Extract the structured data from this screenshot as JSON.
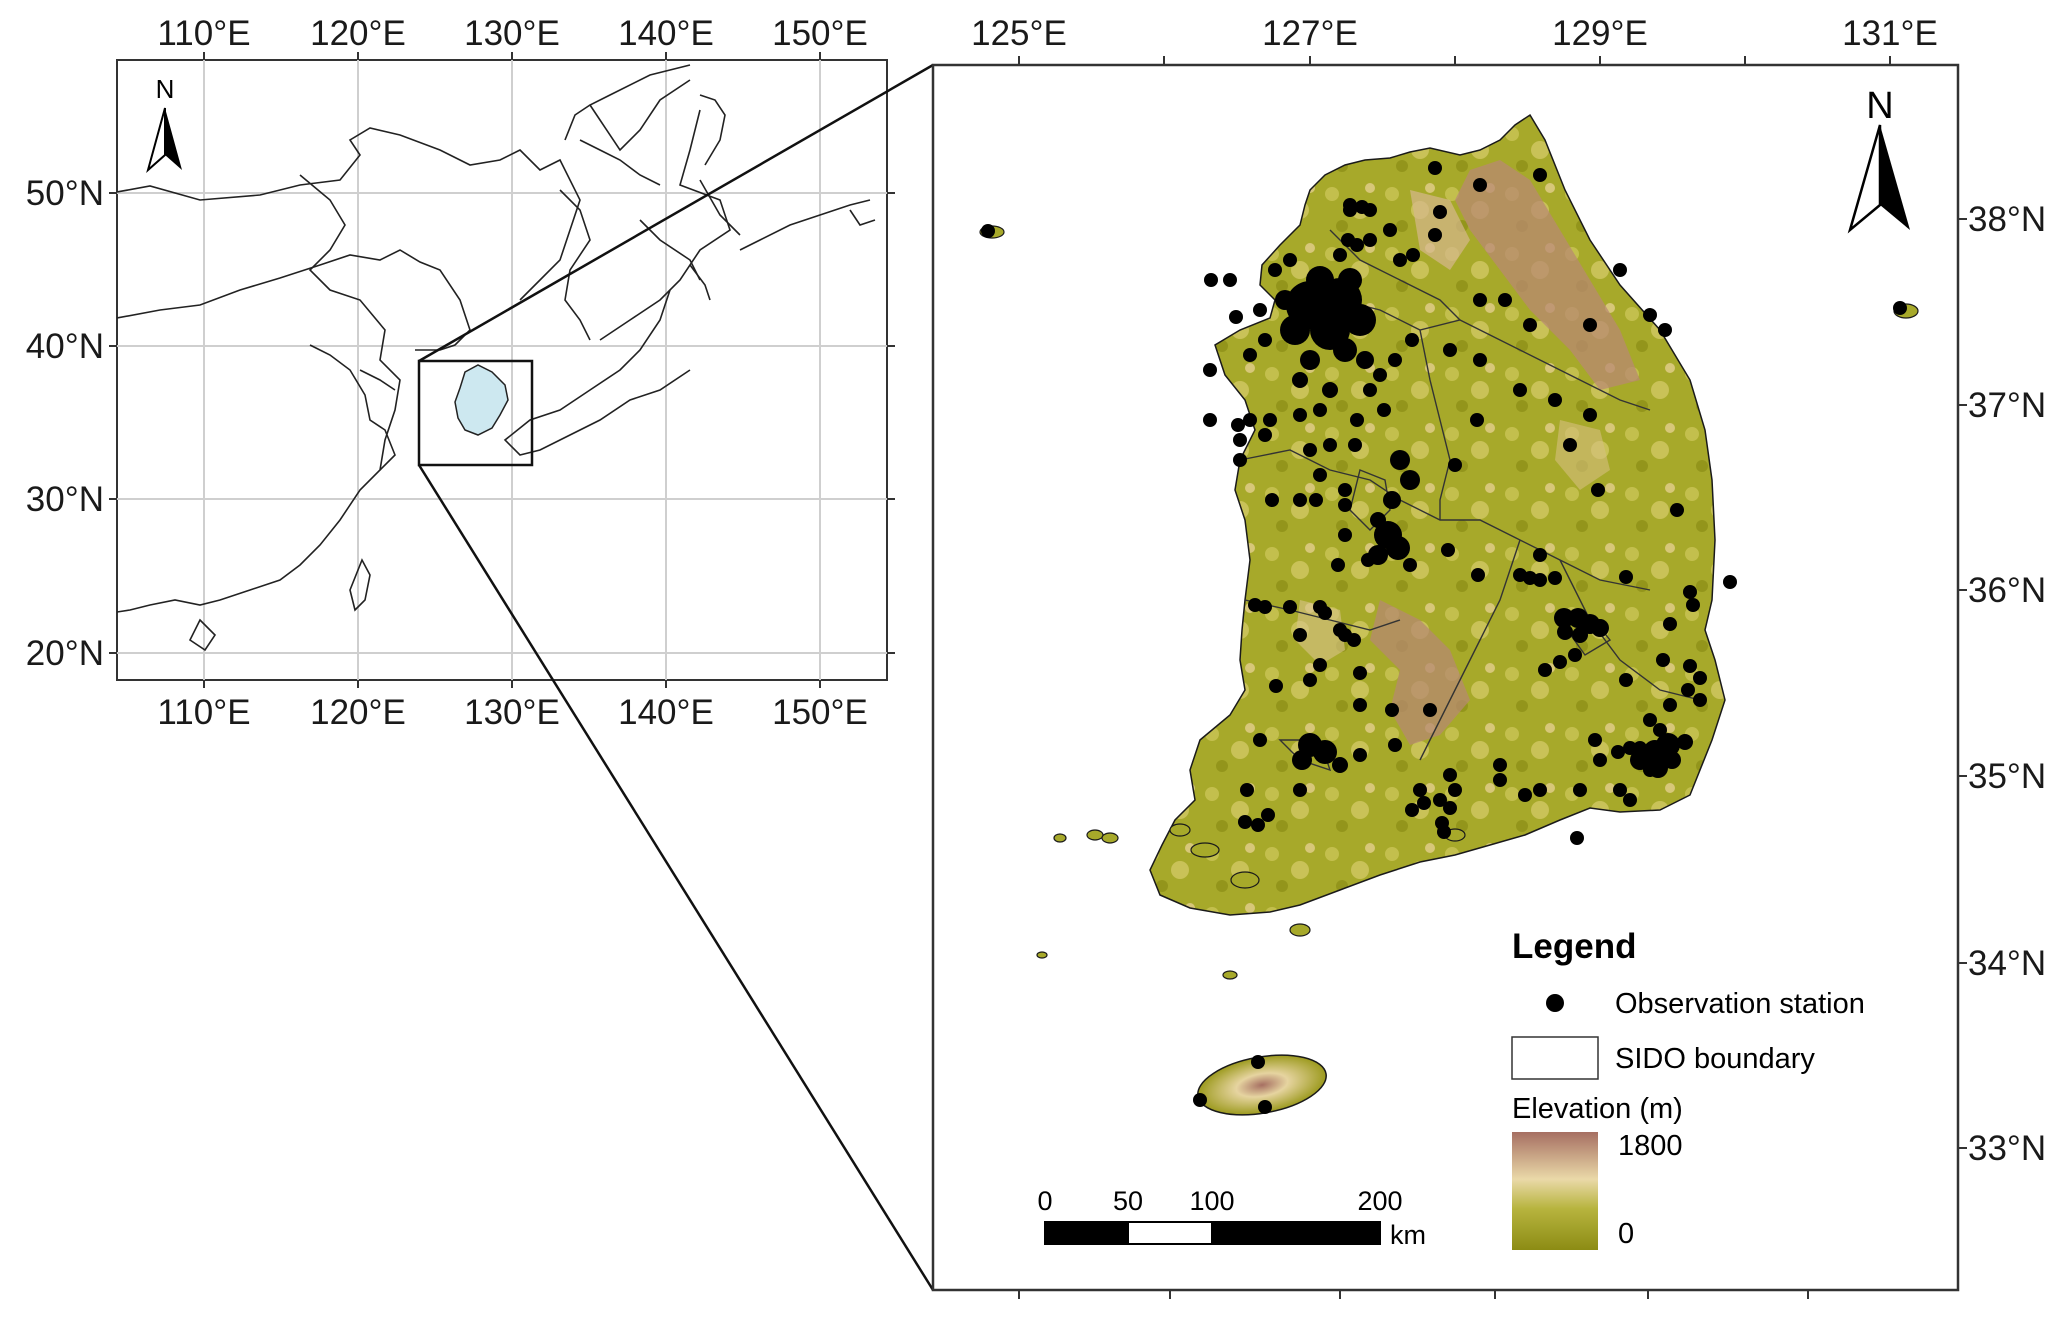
{
  "overview_map": {
    "x_ticks": [
      "110°E",
      "120°E",
      "130°E",
      "140°E",
      "150°E"
    ],
    "y_ticks": [
      "50°N",
      "40°N",
      "30°N",
      "20°N"
    ],
    "north_label": "N"
  },
  "detail_map": {
    "x_ticks": [
      "125°E",
      "127°E",
      "129°E",
      "131°E"
    ],
    "y_ticks": [
      "38°N",
      "37°N",
      "36°N",
      "35°N",
      "34°N",
      "33°N"
    ],
    "north_label": "N"
  },
  "legend": {
    "title": "Legend",
    "station_label": "Observation station",
    "boundary_label": "SIDO boundary",
    "elevation_title": "Elevation (m)",
    "elev_max": "1800",
    "elev_min": "0",
    "colors": {
      "low": "#8c8c14",
      "mid": "#e8d8a6",
      "high": "#a66f62",
      "highlight": "#cde8f0",
      "station": "#000000"
    }
  },
  "scale_bar": {
    "labels": [
      "0",
      "50",
      "100",
      "200"
    ],
    "unit": "km"
  }
}
